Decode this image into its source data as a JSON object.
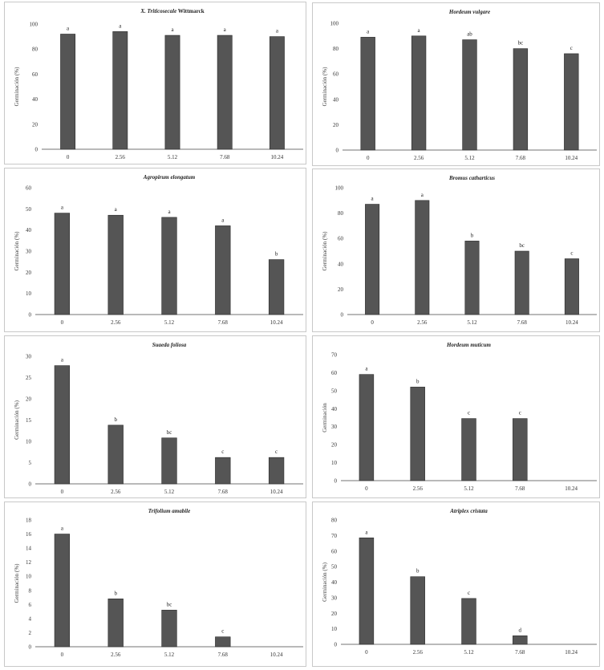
{
  "colors": {
    "bar": "#555555",
    "bar_stroke": "#2b2b2b",
    "panel_border": "#c8c8c8"
  },
  "chart_data": [
    {
      "type": "bar",
      "title": "X. Triticosecale",
      "title_suffix": "Wittmarck",
      "ylabel": "Germinación (%)",
      "categories": [
        "0",
        "2.56",
        "5.12",
        "7.68",
        "10.24"
      ],
      "values": [
        92,
        94,
        91,
        91,
        90
      ],
      "letters": [
        "a",
        "a",
        "a",
        "a",
        "a"
      ],
      "ylim": [
        0,
        100
      ],
      "yticks": [
        "0",
        "20",
        "40",
        "60",
        "80",
        "100"
      ],
      "grid": false
    },
    {
      "type": "bar",
      "title": "Hordeum vulgare",
      "ylabel": "Germinación (%)",
      "categories": [
        "0",
        "2.56",
        "5.12",
        "7.68",
        "10.24"
      ],
      "values": [
        89,
        90,
        87,
        80,
        76
      ],
      "letters": [
        "a",
        "a",
        "ab",
        "bc",
        "c"
      ],
      "ylim": [
        0,
        100
      ],
      "yticks": [
        "0",
        "20",
        "40",
        "60",
        "80",
        "100"
      ],
      "grid": false
    },
    {
      "type": "bar",
      "title": "Agropirum elongatum",
      "ylabel": "Germinación (%)",
      "categories": [
        "0",
        "2.56",
        "5.12",
        "7.68",
        "10.24"
      ],
      "values": [
        48,
        47,
        46,
        42,
        26
      ],
      "letters": [
        "a",
        "a",
        "a",
        "a",
        "b"
      ],
      "ylim": [
        0,
        60
      ],
      "yticks": [
        "0",
        "10",
        "20",
        "30",
        "40",
        "50",
        "60"
      ],
      "grid": false
    },
    {
      "type": "bar",
      "title": "Bromus catharticus",
      "ylabel": "Germinación (%)",
      "categories": [
        "0",
        "2.56",
        "5.12",
        "7.68",
        "10.24"
      ],
      "values": [
        87,
        90,
        58,
        50,
        44
      ],
      "letters": [
        "a",
        "a",
        "b",
        "bc",
        "c"
      ],
      "ylim": [
        0,
        100
      ],
      "yticks": [
        "0",
        "20",
        "40",
        "60",
        "80",
        "100"
      ],
      "grid": false
    },
    {
      "type": "bar",
      "title": "Suaeda foliosa",
      "ylabel": "Germinación (%)",
      "categories": [
        "0",
        "2.56",
        "5.12",
        "7.68",
        "10.24"
      ],
      "values": [
        27.8,
        13.8,
        10.8,
        6.2,
        6.2
      ],
      "letters": [
        "a",
        "b",
        "bc",
        "c",
        "c"
      ],
      "ylim": [
        0,
        30
      ],
      "yticks": [
        "0",
        "5",
        "10",
        "15",
        "20",
        "25",
        "30"
      ],
      "grid": false
    },
    {
      "type": "bar",
      "title": "Hordeum muticum",
      "ylabel": "Germinación",
      "categories": [
        "0",
        "2.56",
        "5.12",
        "7.68",
        "10.24"
      ],
      "values": [
        59,
        52,
        34.5,
        34.5,
        0
      ],
      "letters": [
        "a",
        "b",
        "c",
        "c",
        ""
      ],
      "ylim": [
        0,
        70
      ],
      "yticks": [
        "0",
        "10",
        "20",
        "30",
        "40",
        "50",
        "60",
        "70"
      ],
      "grid": false
    },
    {
      "type": "bar",
      "title": "Trifolium amabile",
      "ylabel": "Germinación (%)",
      "categories": [
        "0",
        "2.56",
        "5.12",
        "7.68",
        "10.24"
      ],
      "values": [
        16,
        6.8,
        5.2,
        1.4,
        0
      ],
      "letters": [
        "a",
        "b",
        "bc",
        "c",
        ""
      ],
      "ylim": [
        0,
        18
      ],
      "yticks": [
        "0",
        "2",
        "4",
        "6",
        "8",
        "10",
        "12",
        "14",
        "16",
        "18"
      ],
      "grid": false
    },
    {
      "type": "bar",
      "title": "Atriplex cristata",
      "ylabel": "Germinación (%)",
      "categories": [
        "0",
        "2.56",
        "5.12",
        "7.68",
        "10.24"
      ],
      "values": [
        68.5,
        43.5,
        29.5,
        5.5,
        0
      ],
      "letters": [
        "a",
        "b",
        "c",
        "d",
        ""
      ],
      "ylim": [
        0,
        80
      ],
      "yticks": [
        "0",
        "10",
        "20",
        "30",
        "40",
        "50",
        "60",
        "70",
        "80"
      ],
      "grid": false
    }
  ]
}
